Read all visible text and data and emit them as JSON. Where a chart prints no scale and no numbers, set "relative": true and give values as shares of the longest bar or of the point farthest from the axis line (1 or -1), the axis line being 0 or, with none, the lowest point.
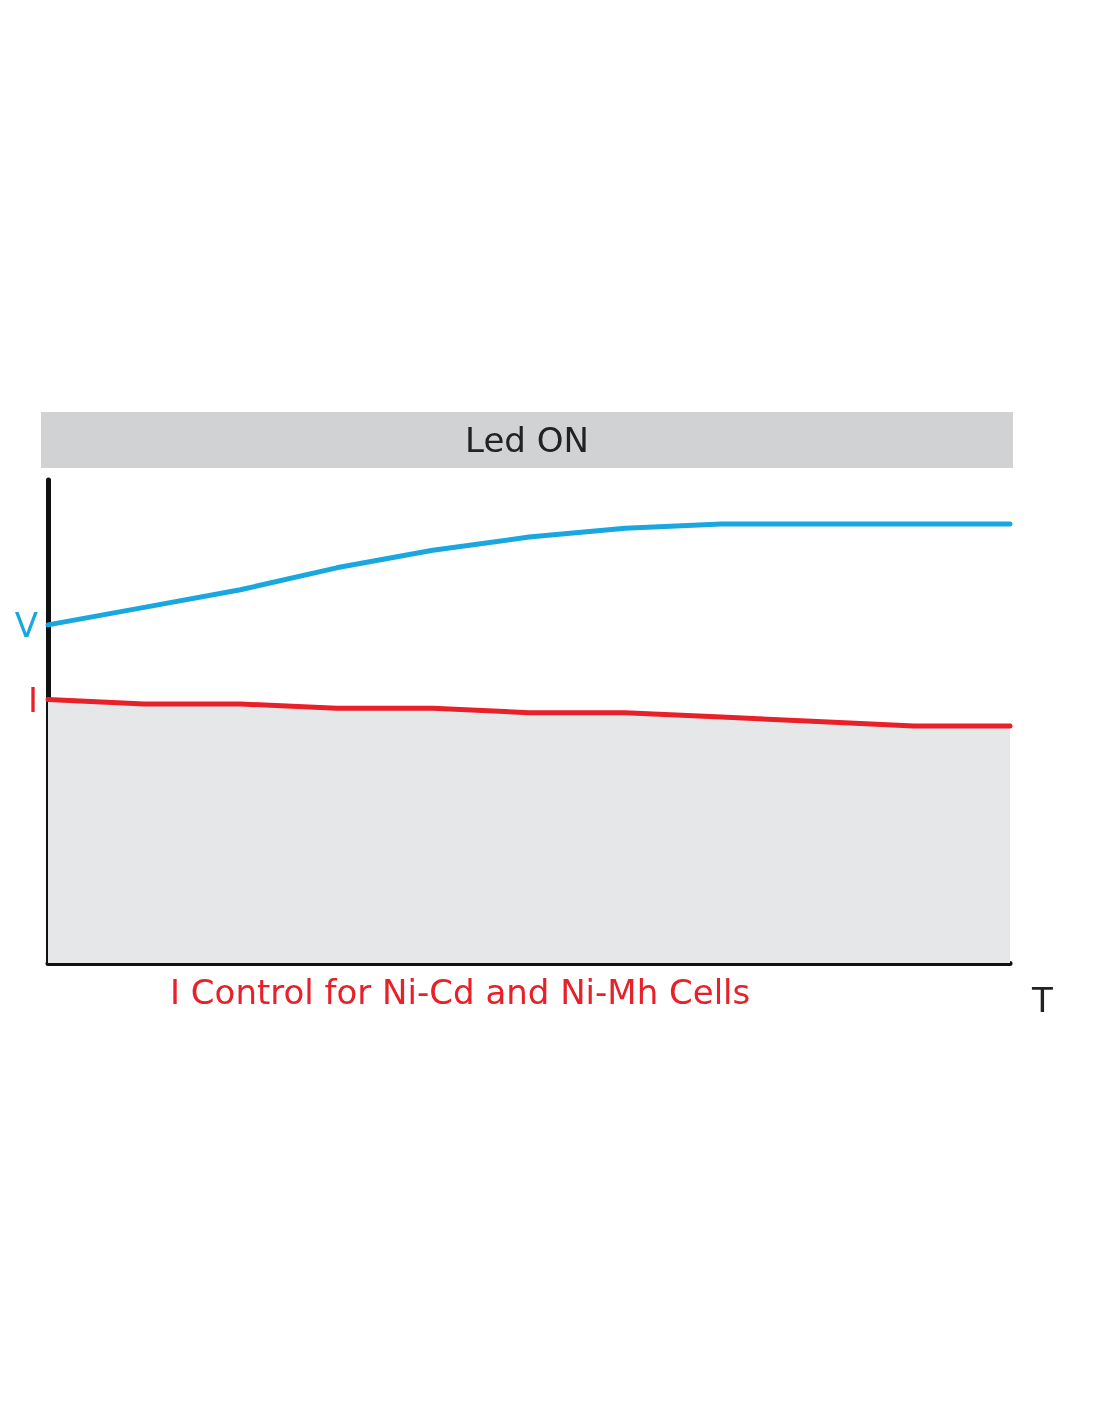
{
  "chart_data": {
    "type": "line",
    "title": "Led ON",
    "xlabel": "T",
    "annotations": [
      "I Control for Ni-Cd and Ni-Mh Cells"
    ],
    "relative": true,
    "categories": [
      null,
      null,
      null,
      null,
      null,
      null,
      null,
      null,
      null,
      null,
      null
    ],
    "series": [
      {
        "name": "V",
        "color": "#1aa7e0",
        "values": [
          0.77,
          0.81,
          0.85,
          0.9,
          0.94,
          0.97,
          0.99,
          1,
          1,
          1,
          1
        ]
      },
      {
        "name": "I",
        "type": "area",
        "color": "#e8202a",
        "values": [
          0.6,
          0.59,
          0.59,
          0.58,
          0.58,
          0.57,
          0.57,
          0.56,
          0.55,
          0.54,
          0.54
        ]
      }
    ],
    "marker": "none",
    "legend": false,
    "grid": false
  }
}
